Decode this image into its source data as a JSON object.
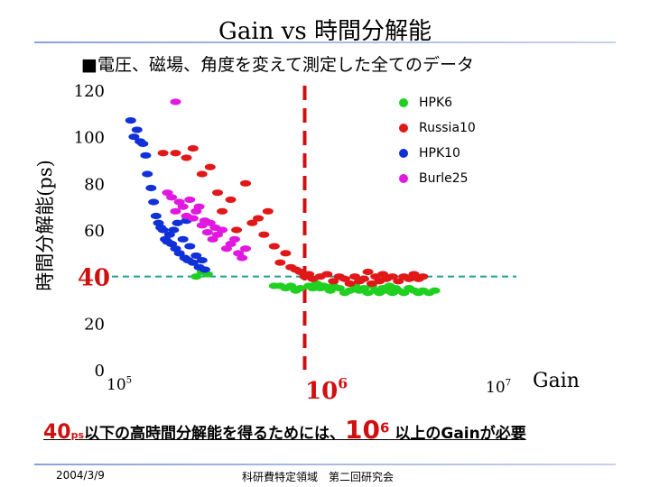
{
  "slide": {
    "title": "Gain vs 時間分解能",
    "subtitle": "■電圧、磁場、角度を変えて測定した全てのデータ",
    "bottom_pre": "40",
    "bottom_ps": "ps",
    "bottom_mid": "以下の高時間分解能を得るためには、",
    "bottom_106": "10",
    "bottom_exp": "6",
    "bottom_post": " 以上のGainが必要",
    "date": "2004/3/9",
    "footer": "科研費特定領域　第二回研究会"
  },
  "chart_data": {
    "type": "scatter",
    "title": "",
    "ylabel": "時間分解能(ps)",
    "xlabel": "Gain",
    "xscale": "log",
    "xlim": [
      100000,
      10000000
    ],
    "ylim": [
      0,
      120
    ],
    "y_ticks": [
      "0",
      "20",
      "40",
      "60",
      "80",
      "100",
      "120"
    ],
    "x_ticks": [
      {
        "base": "10",
        "exp": "5"
      },
      {
        "base": "10",
        "exp": "6"
      },
      {
        "base": "10",
        "exp": "7"
      }
    ],
    "reference_lines": [
      {
        "axis": "y",
        "value": 40,
        "label": "40",
        "color": "#20a090",
        "style": "dashed"
      },
      {
        "axis": "x",
        "value": 1000000,
        "color": "#d01010",
        "style": "dashed"
      }
    ],
    "series": [
      {
        "name": "HPK6",
        "color": "#20d020",
        "points": [
          [
            280000,
            40
          ],
          [
            300000,
            42
          ],
          [
            320000,
            41
          ],
          [
            700000,
            36
          ],
          [
            750000,
            36
          ],
          [
            800000,
            35
          ],
          [
            850000,
            36
          ],
          [
            900000,
            34
          ],
          [
            950000,
            35
          ],
          [
            1050000,
            36
          ],
          [
            1100000,
            35
          ],
          [
            1150000,
            37
          ],
          [
            1200000,
            35
          ],
          [
            1250000,
            36
          ],
          [
            1300000,
            35
          ],
          [
            1350000,
            34
          ],
          [
            1400000,
            36
          ],
          [
            1500000,
            35
          ],
          [
            1600000,
            33
          ],
          [
            1700000,
            34
          ],
          [
            1800000,
            36
          ],
          [
            1900000,
            34
          ],
          [
            2000000,
            35
          ],
          [
            2100000,
            33
          ],
          [
            2200000,
            36
          ],
          [
            2300000,
            34
          ],
          [
            2400000,
            33
          ],
          [
            2500000,
            35
          ],
          [
            2600000,
            34
          ],
          [
            2700000,
            36
          ],
          [
            2800000,
            33
          ],
          [
            2900000,
            35
          ],
          [
            3000000,
            34
          ],
          [
            3200000,
            33
          ],
          [
            3400000,
            35
          ],
          [
            3600000,
            34
          ],
          [
            3800000,
            33
          ],
          [
            4000000,
            34
          ],
          [
            4300000,
            33
          ],
          [
            4600000,
            34
          ]
        ]
      },
      {
        "name": "Russia10",
        "color": "#e01818",
        "points": [
          [
            190000,
            93
          ],
          [
            220000,
            93
          ],
          [
            250000,
            91
          ],
          [
            270000,
            95
          ],
          [
            300000,
            84
          ],
          [
            330000,
            87
          ],
          [
            360000,
            76
          ],
          [
            380000,
            68
          ],
          [
            420000,
            73
          ],
          [
            450000,
            60
          ],
          [
            500000,
            80
          ],
          [
            540000,
            63
          ],
          [
            580000,
            65
          ],
          [
            620000,
            58
          ],
          [
            650000,
            68
          ],
          [
            700000,
            53
          ],
          [
            750000,
            46
          ],
          [
            800000,
            50
          ],
          [
            850000,
            44
          ],
          [
            900000,
            43
          ],
          [
            950000,
            42
          ],
          [
            1000000,
            40
          ],
          [
            1050000,
            41
          ],
          [
            1100000,
            39
          ],
          [
            1200000,
            40
          ],
          [
            1300000,
            41
          ],
          [
            1400000,
            38
          ],
          [
            1500000,
            40
          ],
          [
            1600000,
            39
          ],
          [
            1700000,
            37
          ],
          [
            1800000,
            40
          ],
          [
            1900000,
            38
          ],
          [
            2000000,
            39
          ],
          [
            2100000,
            42
          ],
          [
            2200000,
            37
          ],
          [
            2300000,
            40
          ],
          [
            2400000,
            38
          ],
          [
            2500000,
            41
          ],
          [
            2600000,
            39
          ],
          [
            2800000,
            40
          ],
          [
            3000000,
            38
          ],
          [
            3200000,
            40
          ],
          [
            3400000,
            39
          ],
          [
            3600000,
            41
          ],
          [
            3800000,
            39
          ],
          [
            4000000,
            40
          ]
        ]
      },
      {
        "name": "HPK10",
        "color": "#1030d8",
        "points": [
          [
            130000,
            107
          ],
          [
            135000,
            100
          ],
          [
            140000,
            103
          ],
          [
            145000,
            98
          ],
          [
            150000,
            97
          ],
          [
            155000,
            92
          ],
          [
            158000,
            84
          ],
          [
            165000,
            78
          ],
          [
            170000,
            72
          ],
          [
            175000,
            66
          ],
          [
            180000,
            63
          ],
          [
            185000,
            61
          ],
          [
            190000,
            60
          ],
          [
            195000,
            56
          ],
          [
            200000,
            55
          ],
          [
            205000,
            58
          ],
          [
            210000,
            54
          ],
          [
            215000,
            60
          ],
          [
            220000,
            52
          ],
          [
            225000,
            63
          ],
          [
            230000,
            50
          ],
          [
            240000,
            56
          ],
          [
            245000,
            48
          ],
          [
            250000,
            64
          ],
          [
            255000,
            47
          ],
          [
            260000,
            53
          ],
          [
            270000,
            46
          ],
          [
            280000,
            49
          ],
          [
            290000,
            44
          ],
          [
            300000,
            47
          ],
          [
            310000,
            43
          ]
        ]
      },
      {
        "name": "Burle25",
        "color": "#e018e0",
        "points": [
          [
            220000,
            115
          ],
          [
            200000,
            76
          ],
          [
            210000,
            74
          ],
          [
            220000,
            68
          ],
          [
            230000,
            72
          ],
          [
            240000,
            70
          ],
          [
            250000,
            66
          ],
          [
            260000,
            73
          ],
          [
            270000,
            65
          ],
          [
            280000,
            68
          ],
          [
            290000,
            70
          ],
          [
            300000,
            62
          ],
          [
            310000,
            64
          ],
          [
            320000,
            59
          ],
          [
            330000,
            63
          ],
          [
            340000,
            56
          ],
          [
            350000,
            61
          ],
          [
            360000,
            58
          ],
          [
            380000,
            60
          ],
          [
            400000,
            52
          ],
          [
            420000,
            54
          ],
          [
            440000,
            56
          ],
          [
            460000,
            50
          ],
          [
            480000,
            48
          ],
          [
            500000,
            52
          ]
        ]
      }
    ]
  }
}
